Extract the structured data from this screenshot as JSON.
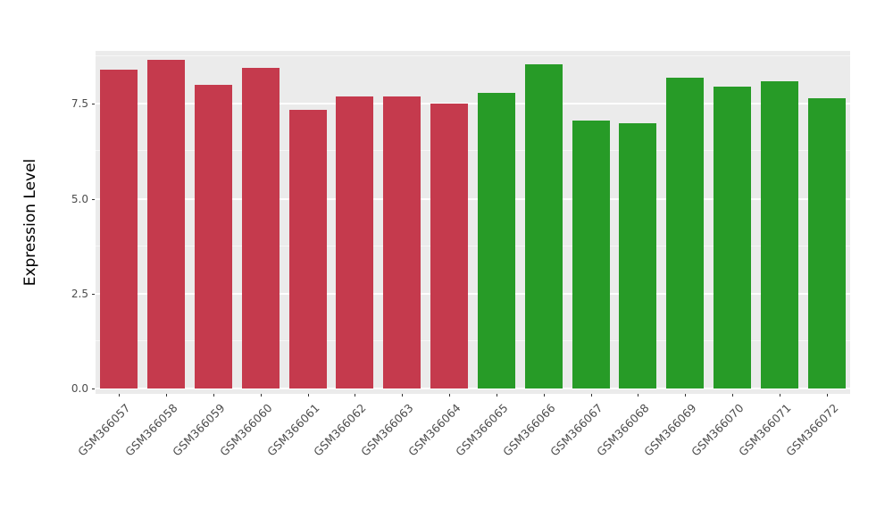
{
  "figure": {
    "ylabel": "Expression Level"
  },
  "chart_data": {
    "type": "bar",
    "title": "",
    "xlabel": "",
    "ylabel": "Expression Level",
    "categories": [
      "GSM366057",
      "GSM366058",
      "GSM366059",
      "GSM366060",
      "GSM366061",
      "GSM366062",
      "GSM366063",
      "GSM366064",
      "GSM366065",
      "GSM366066",
      "GSM366067",
      "GSM366068",
      "GSM366069",
      "GSM366070",
      "GSM366071",
      "GSM366072"
    ],
    "values": [
      8.4,
      8.65,
      8.0,
      8.45,
      7.35,
      7.7,
      7.7,
      7.5,
      7.8,
      8.55,
      7.05,
      7.0,
      8.2,
      7.95,
      8.1,
      7.65
    ],
    "groups": [
      "red",
      "red",
      "red",
      "red",
      "red",
      "red",
      "red",
      "red",
      "green",
      "green",
      "green",
      "green",
      "green",
      "green",
      "green",
      "green"
    ],
    "colors": {
      "red": "#C53A4D",
      "green": "#279B27"
    },
    "panel_background": "#EBEBEB",
    "grid": "major-and-minor-white",
    "legend": "none",
    "ylim": [
      0,
      9.0
    ],
    "yticks": [
      0,
      2.5,
      5,
      7.5
    ],
    "ytick_labels": [
      "0.0",
      "2.5",
      "5.0",
      "7.5"
    ],
    "minor_yticks": [
      1.25,
      3.75,
      6.25,
      8.75
    ]
  }
}
